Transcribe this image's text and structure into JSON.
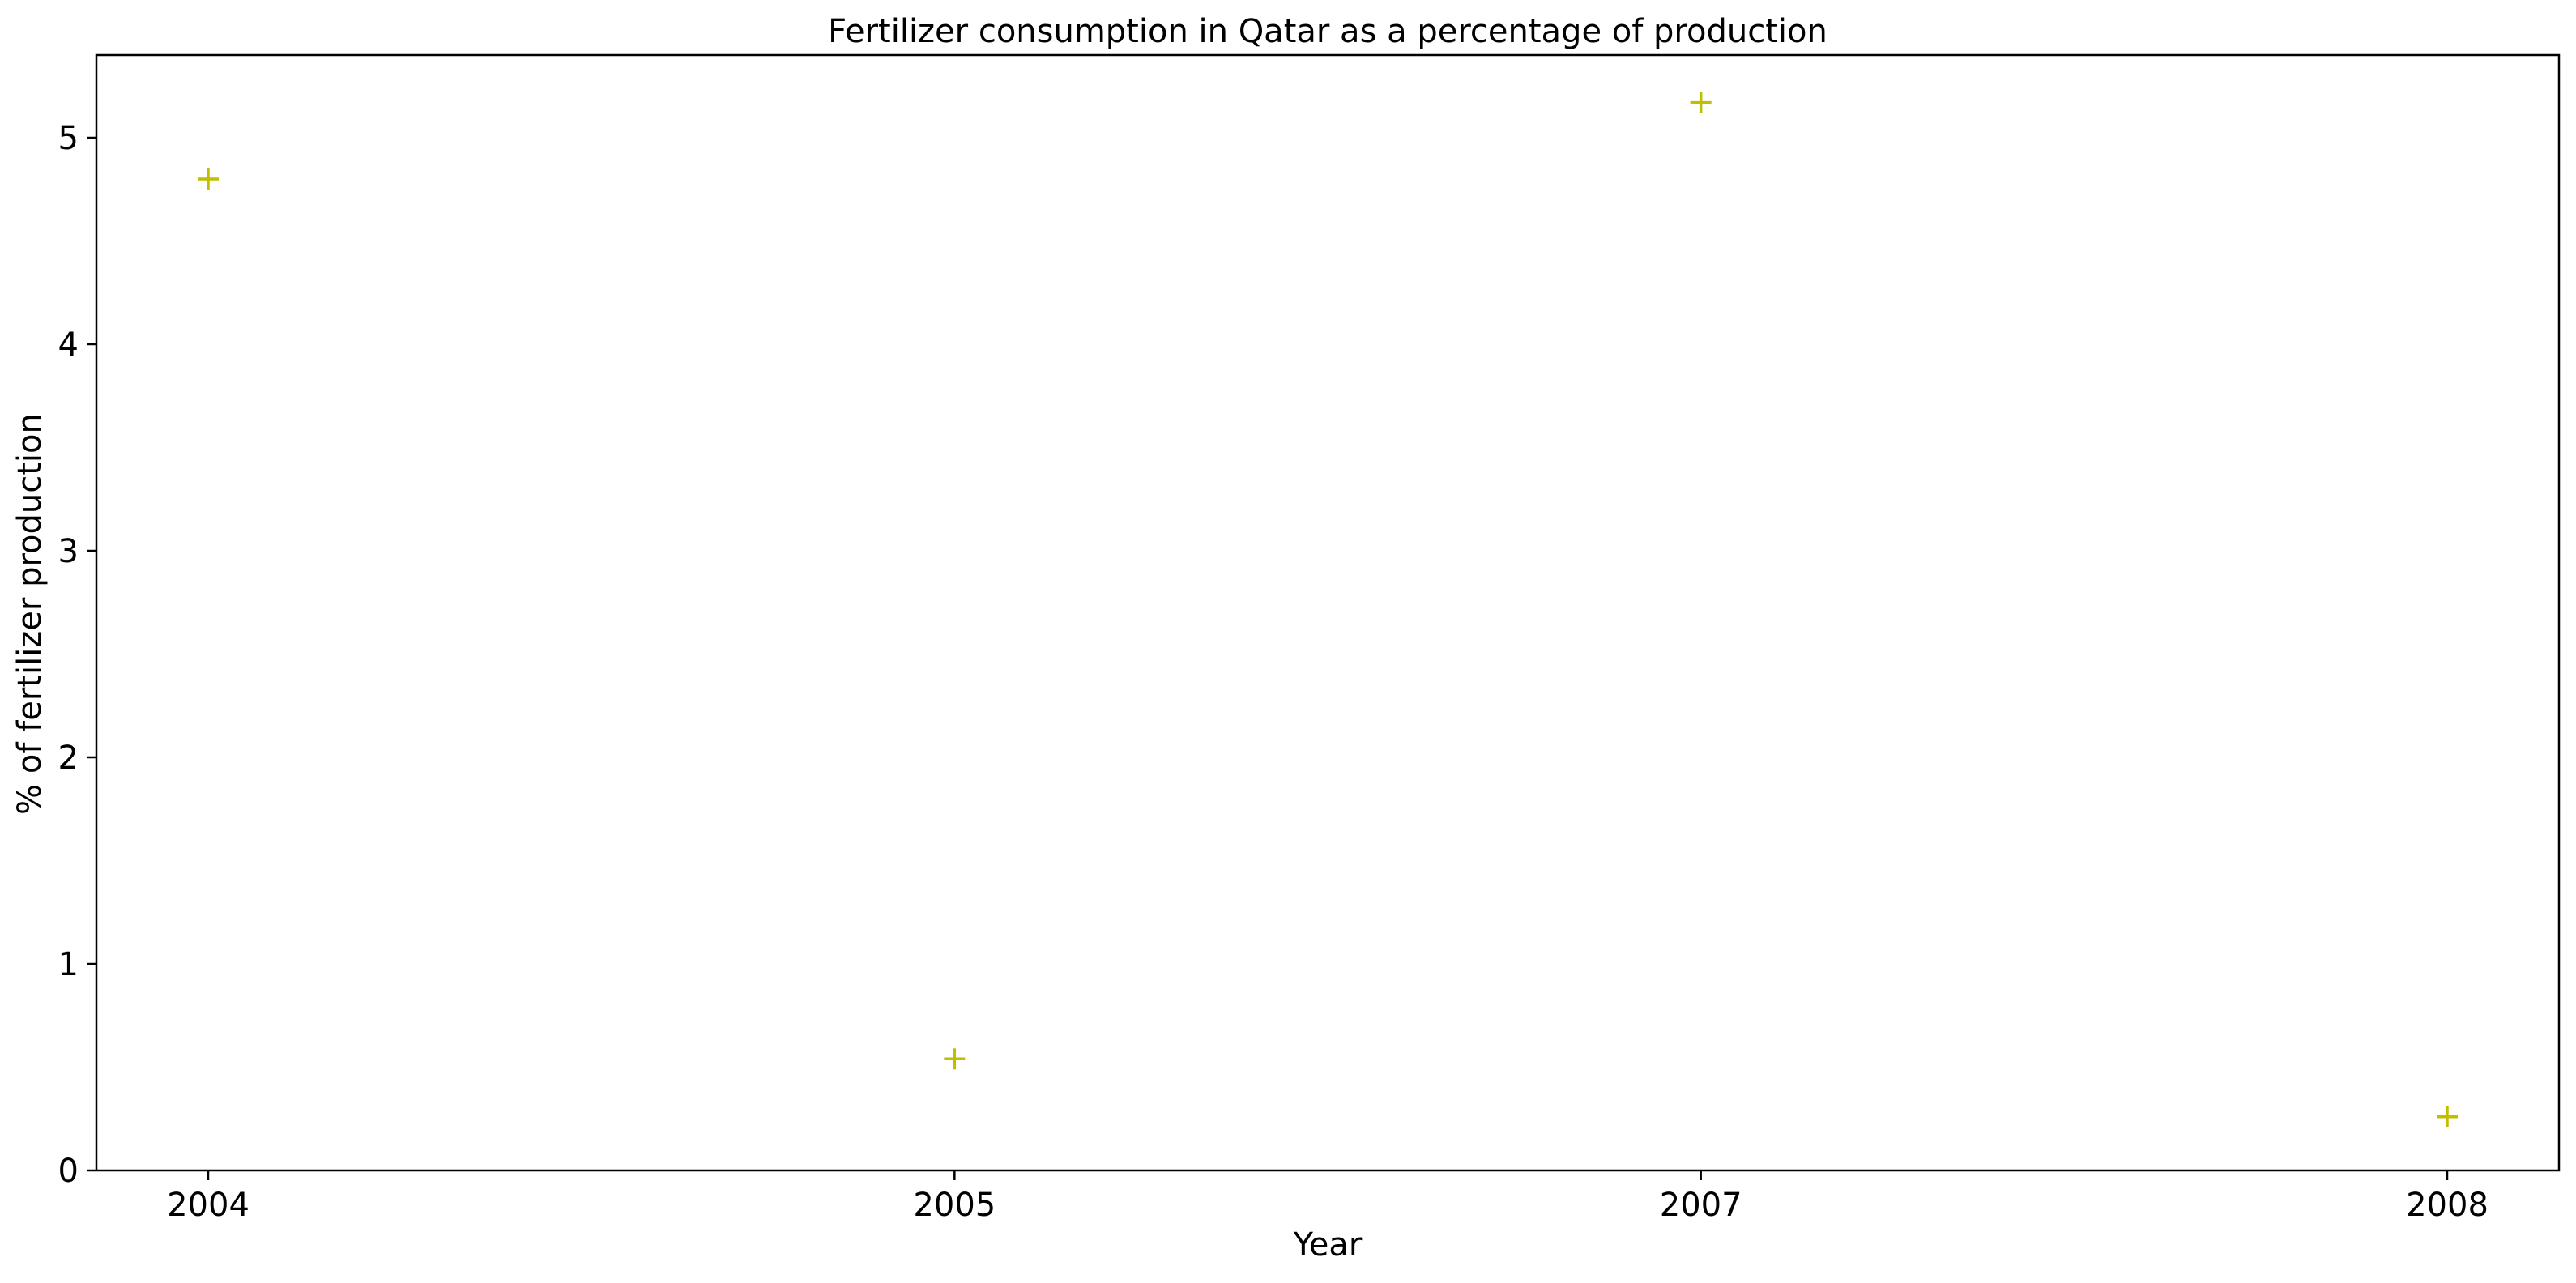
{
  "chart_data": {
    "type": "scatter",
    "title": "Fertilizer consumption in Qatar as a percentage of production",
    "xlabel": "Year",
    "ylabel": "% of fertilizer production",
    "categories": [
      "2004",
      "2005",
      "2007",
      "2008"
    ],
    "series": [
      {
        "values": [
          4.8,
          0.54,
          5.17,
          0.26
        ],
        "color": "#bfbf00",
        "marker": "plus"
      }
    ],
    "ylim": [
      0,
      5.4
    ],
    "yticks": [
      "0",
      "1",
      "2",
      "3",
      "4",
      "5"
    ],
    "grid": false,
    "legend": "none"
  }
}
